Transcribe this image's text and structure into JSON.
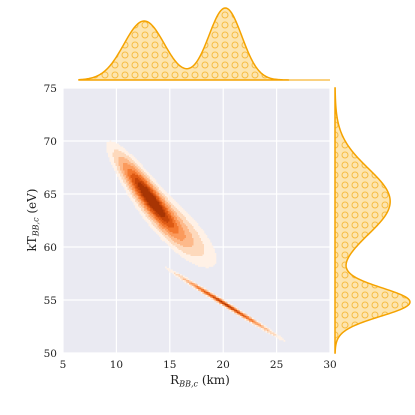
{
  "chart_data": {
    "type": "kde-joint",
    "xlabel": "R_{BB,c} (km)",
    "ylabel": "kT_{BB,c} (eV)",
    "xlabel_main": "R",
    "xlabel_sub": "BB,c",
    "xlabel_unit": " (km)",
    "ylabel_main": "kT",
    "ylabel_sub": "BB,c",
    "ylabel_unit": " (eV)",
    "xlim": [
      5,
      30
    ],
    "ylim": [
      50,
      75
    ],
    "xticks": [
      5,
      10,
      15,
      20,
      25,
      30
    ],
    "yticks": [
      50,
      55,
      60,
      65,
      70,
      75
    ],
    "grid": true,
    "background_color": "#eaeaf2",
    "density_colors": [
      "#fff1e6",
      "#fdd9bc",
      "#fdb98a",
      "#fb9a5c",
      "#f3782f",
      "#de5a14",
      "#c44509",
      "#a83504"
    ],
    "marginal_color": "#f5a300",
    "marginal_fill": "#fde5b0",
    "joint_components": [
      {
        "center": [
          13.0,
          64.8
        ],
        "sigma_major": 2.6,
        "sigma_minor": 0.55,
        "slope": -1.35,
        "weight": 1.0
      },
      {
        "center": [
          15.5,
          62.0
        ],
        "sigma_major": 2.8,
        "sigma_minor": 0.9,
        "slope": -1.0,
        "weight": 0.28
      },
      {
        "center": [
          20.2,
          54.6
        ],
        "sigma_major": 2.8,
        "sigma_minor": 0.12,
        "slope": -0.62,
        "weight": 0.9
      }
    ],
    "marginal_x": {
      "components": [
        {
          "mean": 12.6,
          "sd": 1.9,
          "weight": 1.0
        },
        {
          "mean": 20.2,
          "sd": 1.55,
          "weight": 1.22
        }
      ]
    },
    "marginal_y": {
      "components": [
        {
          "mean": 64.3,
          "sd": 3.1,
          "weight": 1.0
        },
        {
          "mean": 54.8,
          "sd": 1.35,
          "weight": 1.35
        }
      ]
    }
  }
}
